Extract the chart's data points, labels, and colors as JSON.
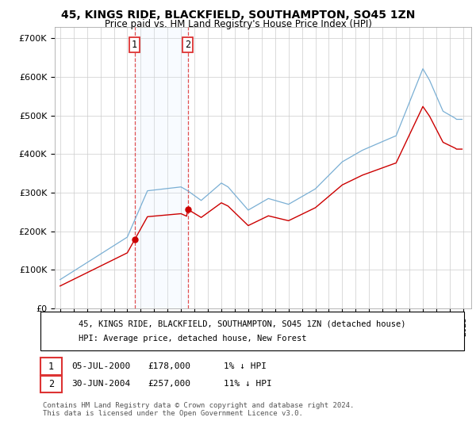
{
  "title": "45, KINGS RIDE, BLACKFIELD, SOUTHAMPTON, SO45 1ZN",
  "subtitle": "Price paid vs. HM Land Registry's House Price Index (HPI)",
  "legend_label1": "45, KINGS RIDE, BLACKFIELD, SOUTHAMPTON, SO45 1ZN (detached house)",
  "legend_label2": "HPI: Average price, detached house, New Forest",
  "ann1_num": "1",
  "ann1_date": "05-JUL-2000",
  "ann1_price": "£178,000",
  "ann1_hpi": "1% ↓ HPI",
  "ann2_num": "2",
  "ann2_date": "30-JUN-2004",
  "ann2_price": "£257,000",
  "ann2_hpi": "11% ↓ HPI",
  "footer": "Contains HM Land Registry data © Crown copyright and database right 2024.\nThis data is licensed under the Open Government Licence v3.0.",
  "line_color_red": "#cc0000",
  "line_color_blue": "#7aafd4",
  "shade_color": "#ddeeff",
  "vline_color": "#dd3333",
  "background_color": "#ffffff",
  "ylim": [
    0,
    730000
  ],
  "yticks": [
    0,
    100000,
    200000,
    300000,
    400000,
    500000,
    600000,
    700000
  ],
  "ytick_labels": [
    "£0",
    "£100K",
    "£200K",
    "£300K",
    "£400K",
    "£500K",
    "£600K",
    "£700K"
  ],
  "purchase1_year": 2000.54,
  "purchase1_value": 178000,
  "purchase2_year": 2004.5,
  "purchase2_value": 257000
}
